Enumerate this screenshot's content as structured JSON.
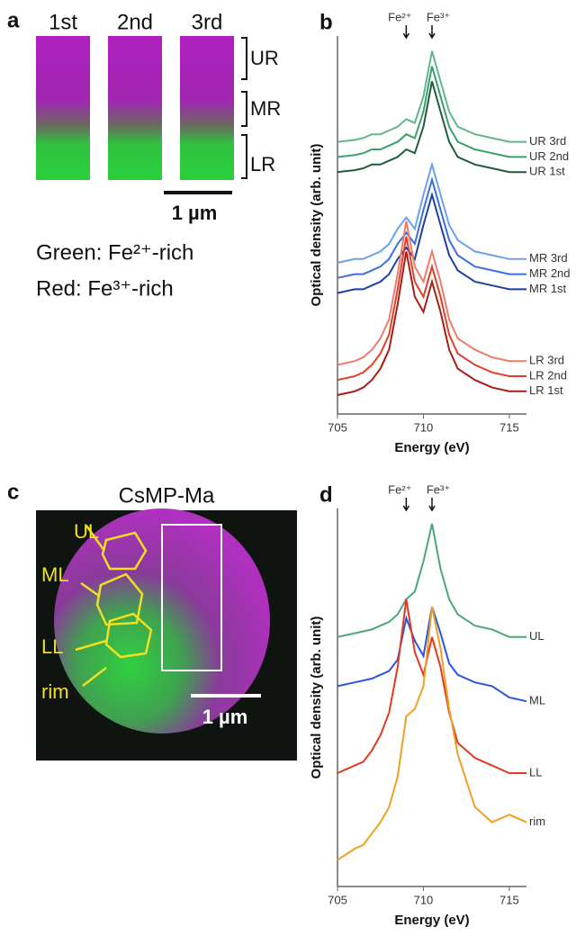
{
  "panel_a": {
    "label": "a",
    "columns": [
      "1st",
      "2nd",
      "3rd"
    ],
    "regions": [
      "UR",
      "MR",
      "LR"
    ],
    "scale_bar": "1 µm",
    "legend": [
      "Green: Fe²⁺-rich",
      "Red: Fe³⁺-rich"
    ]
  },
  "panel_c": {
    "label": "c",
    "title": "CsMP-Ma",
    "regions": [
      "UL",
      "ML",
      "LL",
      "rim"
    ],
    "scale_bar": "1 µm"
  },
  "chart_data": [
    {
      "type": "line",
      "panel_label": "b",
      "x_label": "Energy (eV)",
      "y_label": "Optical density (arb. unit)",
      "annotations": [
        {
          "text": "Fe²⁺",
          "x": 709
        },
        {
          "text": "Fe³⁺",
          "x": 710.5
        }
      ],
      "x": [
        705,
        706,
        706.5,
        707,
        707.5,
        708,
        708.5,
        709,
        709.5,
        710,
        710.5,
        711,
        711.5,
        712,
        713,
        714,
        715,
        716
      ],
      "xlim": [
        705,
        716
      ],
      "xticks": [
        705,
        710,
        715
      ],
      "ylim": [
        0,
        100
      ],
      "series": [
        {
          "name": "UR 3rd",
          "color": "#5fb88a",
          "values": [
            72,
            72.5,
            73,
            74,
            74,
            75,
            76,
            78,
            77,
            84,
            96,
            88,
            80,
            76,
            74,
            73,
            72,
            72
          ]
        },
        {
          "name": "UR 2nd",
          "color": "#38a06a",
          "values": [
            68,
            68.5,
            69,
            70,
            70,
            71,
            72,
            74,
            73,
            80,
            92,
            84,
            76,
            72,
            70,
            69,
            68,
            68
          ]
        },
        {
          "name": "UR 1st",
          "color": "#1f5c3a",
          "values": [
            64,
            64.5,
            65,
            66,
            66,
            67,
            68,
            70,
            69,
            76,
            88,
            80,
            72,
            68,
            66,
            65,
            64,
            64
          ]
        },
        {
          "name": "MR 3rd",
          "color": "#6aa0f0",
          "values": [
            40,
            41,
            41,
            42,
            43,
            45,
            49,
            52,
            49,
            58,
            66,
            58,
            50,
            46,
            43,
            42,
            41,
            41
          ]
        },
        {
          "name": "MR 2nd",
          "color": "#3a6fe0",
          "values": [
            36,
            37,
            37,
            38,
            39,
            41,
            45,
            48,
            45,
            54,
            62,
            54,
            46,
            42,
            39,
            38,
            37,
            37
          ]
        },
        {
          "name": "MR 1st",
          "color": "#1d3fa8",
          "values": [
            32,
            33,
            33,
            34,
            35,
            37,
            41,
            44,
            41,
            50,
            58,
            50,
            42,
            38,
            35,
            34,
            33,
            33
          ]
        },
        {
          "name": "LR 3rd",
          "color": "#f07a6a",
          "values": [
            13,
            14,
            15,
            17,
            20,
            25,
            37,
            51,
            39,
            35,
            43,
            35,
            25,
            20,
            17,
            15,
            14,
            14
          ]
        },
        {
          "name": "LR 2nd",
          "color": "#e0402a",
          "values": [
            9,
            10,
            11,
            13,
            16,
            21,
            33,
            47,
            35,
            31,
            39,
            31,
            21,
            16,
            13,
            11,
            10,
            10
          ]
        },
        {
          "name": "LR 1st",
          "color": "#a81d12",
          "values": [
            5,
            6,
            7,
            9,
            12,
            17,
            29,
            43,
            31,
            27,
            35,
            27,
            17,
            12,
            9,
            7,
            6,
            6
          ]
        }
      ]
    },
    {
      "type": "line",
      "panel_label": "d",
      "x_label": "Energy (eV)",
      "y_label": "Optical density (arb. unit)",
      "annotations": [
        {
          "text": "Fe²⁺",
          "x": 709
        },
        {
          "text": "Fe³⁺",
          "x": 710.5
        }
      ],
      "x": [
        705,
        706,
        706.5,
        707,
        707.5,
        708,
        708.5,
        709,
        709.5,
        710,
        710.5,
        711,
        711.5,
        712,
        713,
        714,
        715,
        716
      ],
      "xlim": [
        705,
        716
      ],
      "xticks": [
        705,
        710,
        715
      ],
      "ylim": [
        0,
        100
      ],
      "series": [
        {
          "name": "UL",
          "color": "#4aa878",
          "values": [
            66,
            67,
            67.5,
            68,
            69,
            70,
            72,
            76,
            78,
            86,
            96,
            84,
            76,
            72,
            69,
            68,
            66,
            66
          ]
        },
        {
          "name": "ML",
          "color": "#2a55e0",
          "values": [
            53,
            54,
            54.5,
            55,
            56,
            57,
            60,
            71,
            65,
            61,
            74,
            67,
            59,
            56,
            54,
            53,
            50,
            49
          ]
        },
        {
          "name": "LL",
          "color": "#e03a20",
          "values": [
            30,
            32,
            33,
            36,
            40,
            46,
            58,
            76,
            62,
            56,
            66,
            58,
            46,
            38,
            34,
            32,
            30,
            30
          ]
        },
        {
          "name": "rim",
          "color": "#f0a020",
          "values": [
            7,
            10,
            11,
            14,
            17,
            21,
            29,
            45,
            47,
            53,
            74,
            63,
            47,
            35,
            21,
            17,
            19,
            17
          ]
        }
      ]
    }
  ]
}
